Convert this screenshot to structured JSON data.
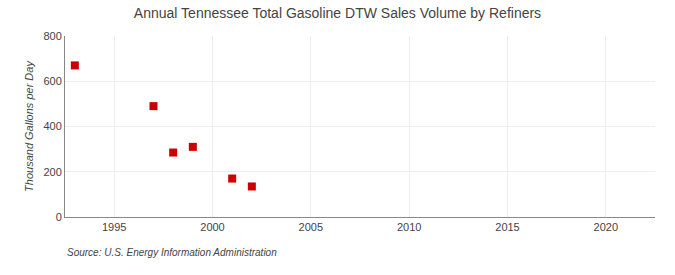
{
  "chart_data": {
    "type": "scatter",
    "title": "Annual Tennessee Total Gasoline DTW Sales Volume by Refiners",
    "ylabel": "Thousand Gallons per Day",
    "annotations": [
      "Source: U.S. Energy Information Administration"
    ],
    "x": [
      1993,
      1997,
      1998,
      1999,
      2001,
      2002
    ],
    "values": [
      670,
      490,
      285,
      310,
      170,
      135
    ],
    "color": "#cc0000",
    "marker": "square",
    "xlim": [
      1992.5,
      2022.5
    ],
    "ylim": [
      0,
      800
    ],
    "xticks": [
      1995,
      2000,
      2005,
      2010,
      2015,
      2020
    ],
    "yticks": [
      0,
      200,
      400,
      600,
      800
    ],
    "grid": true
  }
}
